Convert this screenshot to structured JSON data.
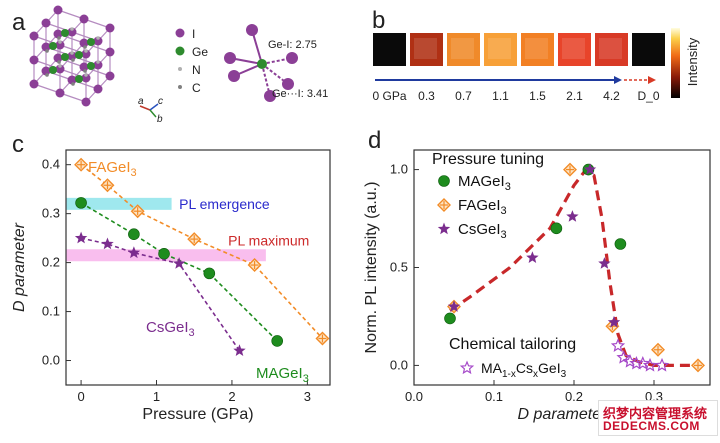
{
  "panel_labels": {
    "a": "a",
    "b": "b",
    "c": "c",
    "d": "d"
  },
  "panel_a": {
    "legend": [
      {
        "label": "I",
        "color": "#8b3f96"
      },
      {
        "label": "Ge",
        "color": "#2e8b2e"
      },
      {
        "label": "N",
        "color": "#b0b0b0"
      },
      {
        "label": "C",
        "color": "#808080"
      }
    ],
    "bond_labels": [
      "Ge-I: 2.75",
      "Ge···I: 3.41"
    ],
    "axes": {
      "a": "a",
      "b": "b",
      "c": "c"
    }
  },
  "panel_b": {
    "swatch_colors": [
      "#0a0a0a",
      "#b03014",
      "#f08a2a",
      "#f7a038",
      "#f28024",
      "#e8442a",
      "#d83a26",
      "#0a0a0a"
    ],
    "pressure_labels": [
      "0 GPa",
      "0.3",
      "0.7",
      "1.1",
      "1.5",
      "2.1",
      "4.2",
      "D_0"
    ],
    "colorbar_label": "Intensity"
  },
  "chart_data": [
    {
      "type": "line",
      "title": "",
      "xlabel": "Pressure (GPa)",
      "ylabel": "D parameter",
      "xlim": [
        -0.2,
        3.3
      ],
      "ylim": [
        -0.05,
        0.43
      ],
      "xticks": [
        "0",
        "1",
        "2",
        "3"
      ],
      "yticks": [
        "0.0",
        "0.1",
        "0.2",
        "0.3",
        "0.4"
      ],
      "series": [
        {
          "name": "FAGeI3",
          "label_main": "FAGeI",
          "label_sub": "3",
          "color": "#f28c28",
          "marker": "diamond-plus",
          "x": [
            0,
            0.35,
            0.75,
            1.5,
            2.3,
            3.2
          ],
          "y": [
            0.4,
            0.358,
            0.305,
            0.248,
            0.195,
            0.045
          ]
        },
        {
          "name": "MAGeI3",
          "label_main": "MAGeI",
          "label_sub": "3",
          "color": "#1e8c1e",
          "marker": "circle",
          "x": [
            0,
            0.7,
            1.1,
            1.7,
            2.6
          ],
          "y": [
            0.322,
            0.258,
            0.218,
            0.178,
            0.04
          ]
        },
        {
          "name": "CsGeI3",
          "label_main": "CsGeI",
          "label_sub": "3",
          "color": "#7b2d8e",
          "marker": "star",
          "x": [
            0,
            0.35,
            0.7,
            1.3,
            2.1
          ],
          "y": [
            0.25,
            0.238,
            0.22,
            0.198,
            0.02
          ]
        }
      ],
      "bands": [
        {
          "label": "PL emergence",
          "y": 0.32,
          "x_from": -0.2,
          "x_to": 1.2,
          "band_color": "#7fe0e8",
          "text_color": "#2a2acc"
        },
        {
          "label": "PL maximum",
          "y": 0.215,
          "x_from": -0.2,
          "x_to": 2.45,
          "band_color": "#f7a8e8",
          "text_color": "#cc2a2a"
        }
      ]
    },
    {
      "type": "scatter",
      "title": "",
      "xlabel": "D parameter",
      "ylabel": "Norm. PL intensity (a.u.)",
      "xlim": [
        0,
        0.37
      ],
      "ylim": [
        -0.1,
        1.1
      ],
      "xticks": [
        "0.0",
        "0.1",
        "0.2",
        "0.3"
      ],
      "yticks": [
        "0.0",
        "0.5",
        "1.0"
      ],
      "legend_title_top": "Pressure tuning",
      "legend_title_bottom": "Chemical tailoring",
      "series": [
        {
          "name": "MAGeI3",
          "label_main": "MAGeI",
          "label_sub": "3",
          "color": "#1e8c1e",
          "marker": "circle",
          "x": [
            0.045,
            0.178,
            0.218,
            0.258
          ],
          "y": [
            0.24,
            0.7,
            1.0,
            0.62
          ]
        },
        {
          "name": "FAGeI3",
          "label_main": "FAGeI",
          "label_sub": "3",
          "color": "#f28c28",
          "marker": "diamond-plus",
          "x": [
            0.05,
            0.195,
            0.248,
            0.305,
            0.355
          ],
          "y": [
            0.3,
            1.0,
            0.2,
            0.08,
            0.0
          ]
        },
        {
          "name": "CsGeI3",
          "label_main": "CsGeI",
          "label_sub": "3",
          "color": "#7b2d8e",
          "marker": "star",
          "x": [
            0.05,
            0.148,
            0.198,
            0.22,
            0.238,
            0.25
          ],
          "y": [
            0.3,
            0.55,
            0.76,
            1.0,
            0.52,
            0.22
          ]
        },
        {
          "name": "MA1-xCsxGeI3",
          "label_main": "MA",
          "label_parts": [
            "MA",
            "1-x",
            "Cs",
            "x",
            "GeI",
            "3"
          ],
          "color": "#a64ac9",
          "marker": "star-open",
          "x": [
            0.255,
            0.262,
            0.27,
            0.278,
            0.286,
            0.295,
            0.31
          ],
          "y": [
            0.1,
            0.04,
            0.02,
            0.01,
            0.01,
            0.0,
            0.0
          ]
        }
      ],
      "trend": {
        "color": "#c8282a",
        "x": [
          0.045,
          0.07,
          0.12,
          0.17,
          0.2,
          0.215,
          0.225,
          0.235,
          0.245,
          0.255,
          0.265,
          0.28,
          0.3,
          0.355
        ],
        "y": [
          0.28,
          0.35,
          0.5,
          0.7,
          0.92,
          1.0,
          0.97,
          0.75,
          0.42,
          0.16,
          0.05,
          0.02,
          0.0,
          0.0
        ]
      }
    }
  ],
  "watermark": {
    "line1": "织梦内容管理系统",
    "line2": "DEDECMS.COM"
  }
}
